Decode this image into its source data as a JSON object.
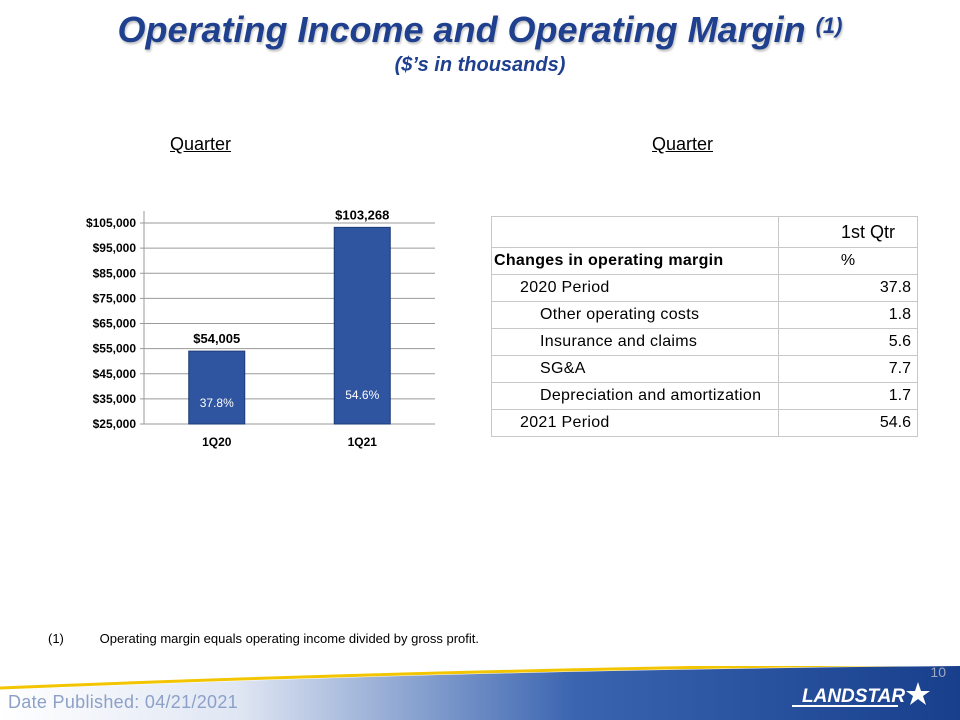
{
  "title": "Operating Income and Operating Margin",
  "title_note": "(1)",
  "subtitle": "($’s in thousands)",
  "left_label": "Quarter",
  "right_label": "Quarter",
  "chart_data": {
    "type": "bar",
    "categories": [
      "1Q20",
      "1Q21"
    ],
    "values": [
      54005,
      103268
    ],
    "value_labels": [
      "$54,005",
      "$103,268"
    ],
    "inner_labels": [
      "37.8%",
      "54.6%"
    ],
    "ylim": [
      25000,
      105000
    ],
    "yticks": [
      25000,
      35000,
      45000,
      55000,
      65000,
      75000,
      85000,
      95000,
      105000
    ],
    "ytick_labels": [
      "$25,000",
      "$35,000",
      "$45,000",
      "$55,000",
      "$65,000",
      "$75,000",
      "$85,000",
      "$95,000",
      "$105,000"
    ],
    "grid": true,
    "bar_color": "#2f54a0"
  },
  "table": {
    "header_col": "1st Qtr",
    "subheader_label": "Changes in operating margin",
    "subheader_unit": "%",
    "rows": [
      {
        "label": "2020 Period",
        "value": "37.8",
        "level": 1
      },
      {
        "label": "Other operating costs",
        "value": "1.8",
        "level": 2
      },
      {
        "label": "Insurance and claims",
        "value": "5.6",
        "level": 2
      },
      {
        "label": "SG&A",
        "value": "7.7",
        "level": 2
      },
      {
        "label": "Depreciation and amortization",
        "value": "1.7",
        "level": 2
      },
      {
        "label": "2021 Period",
        "value": "54.6",
        "level": 1
      }
    ]
  },
  "footnote": {
    "num": "(1)",
    "text": "Operating margin equals operating income divided by gross profit."
  },
  "footer": {
    "page_number": "10",
    "date_published": "Date Published:  04/21/2021",
    "logo_text": "LANDSTAR",
    "colors": {
      "band": "#1f4a9a",
      "accent": "#f2c500"
    }
  }
}
